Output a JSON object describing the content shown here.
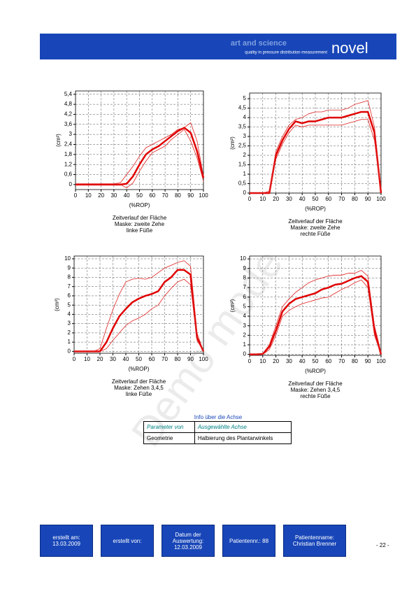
{
  "header": {
    "tagline1": "art and science",
    "tagline2": "quality in pressure distribution measurement",
    "logo": "novel"
  },
  "watermark": "Demo mode",
  "chart_data": [
    {
      "type": "line",
      "xlabel": "(%ROP)",
      "ylabel": "(cm²)",
      "caption": [
        "Zeitverlauf der Fläche",
        "Maske: zweite Zehe",
        "linke Füße"
      ],
      "x": [
        0,
        5,
        10,
        15,
        20,
        25,
        30,
        35,
        40,
        45,
        50,
        55,
        60,
        65,
        70,
        75,
        80,
        85,
        90,
        95,
        100
      ],
      "xlim": [
        0,
        100
      ],
      "xticks": [
        0,
        10,
        20,
        30,
        40,
        50,
        60,
        70,
        80,
        90,
        100
      ],
      "ylim": [
        -0.3,
        5.6
      ],
      "yticks": [
        0,
        {
          "value": 0.6,
          "label": "0,6"
        },
        {
          "value": 1.2,
          "label": "1,2"
        },
        {
          "value": 1.8,
          "label": "1,8"
        },
        {
          "value": 2.4,
          "label": "2,4"
        },
        3,
        {
          "value": 3.6,
          "label": "3,6"
        },
        {
          "value": 4.2,
          "label": "4,2"
        },
        {
          "value": 4.8,
          "label": "4,8"
        },
        {
          "value": 5.4,
          "label": "5,4"
        }
      ],
      "grid": true,
      "series": [
        {
          "color": "#e00000",
          "line_width": 2.5,
          "values": [
            0,
            0,
            0,
            0,
            0,
            0,
            0,
            0,
            0.05,
            0.5,
            1.2,
            1.8,
            2.1,
            2.3,
            2.6,
            2.9,
            3.2,
            3.4,
            3.1,
            2.0,
            0.4
          ]
        },
        {
          "color": "#e02020",
          "line_width": 0.8,
          "values": [
            0.05,
            0.05,
            0.05,
            0.05,
            0.05,
            0.05,
            0.05,
            0.1,
            0.6,
            1.1,
            1.7,
            2.2,
            2.4,
            2.6,
            2.8,
            3.0,
            3.3,
            3.4,
            3.7,
            2.6,
            0.5
          ]
        },
        {
          "color": "#e02020",
          "line_width": 0.8,
          "values": [
            0,
            0,
            0,
            0,
            0,
            0,
            0,
            0,
            -0.2,
            0.1,
            0.8,
            1.4,
            1.9,
            2.1,
            2.3,
            2.7,
            3.0,
            3.3,
            2.6,
            1.6,
            0.2
          ]
        }
      ]
    },
    {
      "type": "line",
      "xlabel": "(%ROP)",
      "ylabel": "(cm²)",
      "caption": [
        "Zeitverlauf der Fläche",
        "Maske: zweite Zehe",
        "rechte Füße"
      ],
      "x": [
        0,
        5,
        10,
        15,
        20,
        25,
        30,
        35,
        40,
        45,
        50,
        55,
        60,
        65,
        70,
        75,
        80,
        85,
        90,
        95,
        100
      ],
      "xlim": [
        0,
        100
      ],
      "xticks": [
        0,
        10,
        20,
        30,
        40,
        50,
        60,
        70,
        80,
        90,
        100
      ],
      "ylim": [
        0,
        5.3
      ],
      "yticks": [
        0,
        {
          "value": 0.5,
          "label": "0,5"
        },
        1,
        {
          "value": 1.5,
          "label": "1,5"
        },
        2,
        {
          "value": 2.5,
          "label": "2,5"
        },
        3,
        {
          "value": 3.5,
          "label": "3,5"
        },
        4,
        {
          "value": 4.5,
          "label": "4,5"
        },
        5
      ],
      "grid": true,
      "series": [
        {
          "color": "#e00000",
          "line_width": 2.5,
          "values": [
            0,
            0,
            0,
            0,
            2.0,
            2.8,
            3.4,
            3.8,
            3.7,
            3.8,
            3.8,
            3.9,
            4.0,
            4.0,
            4.0,
            4.1,
            4.2,
            4.3,
            4.3,
            3.2,
            0
          ]
        },
        {
          "color": "#e02020",
          "line_width": 0.8,
          "values": [
            0,
            0,
            0,
            0.1,
            2.2,
            3.0,
            3.6,
            3.9,
            4.0,
            4.2,
            4.3,
            4.3,
            4.4,
            4.4,
            4.4,
            4.5,
            4.7,
            4.8,
            4.9,
            3.5,
            0.1
          ]
        },
        {
          "color": "#e02020",
          "line_width": 0.8,
          "values": [
            0,
            0,
            0,
            0,
            1.8,
            2.6,
            3.2,
            3.6,
            3.5,
            3.6,
            3.6,
            3.6,
            3.6,
            3.6,
            3.6,
            3.7,
            3.8,
            3.9,
            3.9,
            2.8,
            0
          ]
        }
      ]
    },
    {
      "type": "line",
      "xlabel": "(%ROP)",
      "ylabel": "(cm²)",
      "caption": [
        "Zeitverlauf der Fläche",
        "Maske: Zehen 3,4,5",
        "linke Füße"
      ],
      "x": [
        0,
        5,
        10,
        15,
        20,
        25,
        30,
        35,
        40,
        45,
        50,
        55,
        60,
        65,
        70,
        75,
        80,
        85,
        90,
        95,
        100
      ],
      "xlim": [
        0,
        100
      ],
      "xticks": [
        0,
        10,
        20,
        30,
        40,
        50,
        60,
        70,
        80,
        90,
        100
      ],
      "ylim": [
        -0.2,
        10.3
      ],
      "yticks": [
        0,
        1,
        2,
        3,
        4,
        5,
        6,
        7,
        8,
        9,
        10
      ],
      "grid": true,
      "series": [
        {
          "color": "#e00000",
          "line_width": 2.5,
          "values": [
            0,
            0,
            0,
            0,
            0,
            1.0,
            2.5,
            3.8,
            4.6,
            5.3,
            5.7,
            6.0,
            6.2,
            6.5,
            7.5,
            8.0,
            8.8,
            8.8,
            8.3,
            1.5,
            0
          ]
        },
        {
          "color": "#e02020",
          "line_width": 0.8,
          "values": [
            0,
            0,
            0,
            0,
            0.3,
            2.5,
            4.5,
            6.2,
            7.5,
            7.8,
            7.9,
            7.8,
            8.0,
            8.5,
            9.0,
            9.3,
            9.6,
            9.8,
            9.2,
            2.0,
            0
          ]
        },
        {
          "color": "#e02020",
          "line_width": 0.8,
          "values": [
            0,
            0,
            0,
            0,
            0,
            0.3,
            1.2,
            2.0,
            2.8,
            3.3,
            3.6,
            4.0,
            4.6,
            5.0,
            6.0,
            6.8,
            7.5,
            7.8,
            7.2,
            1.2,
            0
          ]
        }
      ]
    },
    {
      "type": "line",
      "xlabel": "(%ROP)",
      "ylabel": "(cm²)",
      "caption": [
        "Zeitverlauf der Fläche",
        "Maske: Zehen 3,4,5",
        "rechte Füße"
      ],
      "x": [
        0,
        5,
        10,
        15,
        20,
        25,
        30,
        35,
        40,
        45,
        50,
        55,
        60,
        65,
        70,
        75,
        80,
        85,
        90,
        95,
        100
      ],
      "xlim": [
        0,
        100
      ],
      "xticks": [
        0,
        10,
        20,
        30,
        40,
        50,
        60,
        70,
        80,
        90,
        100
      ],
      "ylim": [
        -0.1,
        10.3
      ],
      "yticks": [
        0,
        1,
        2,
        3,
        4,
        5,
        6,
        7,
        8,
        9,
        10
      ],
      "grid": true,
      "series": [
        {
          "color": "#e00000",
          "line_width": 2.5,
          "values": [
            0,
            0,
            0.05,
            0.8,
            2.5,
            4.5,
            5.3,
            5.8,
            6.0,
            6.2,
            6.4,
            6.8,
            7.0,
            7.3,
            7.4,
            7.7,
            8.0,
            8.2,
            7.6,
            2.5,
            0
          ]
        },
        {
          "color": "#e02020",
          "line_width": 0.8,
          "values": [
            0,
            0,
            0.1,
            1.0,
            3.0,
            5.0,
            5.8,
            6.5,
            7.0,
            7.5,
            7.8,
            8.0,
            8.2,
            8.3,
            8.3,
            8.5,
            8.5,
            8.8,
            8.2,
            3.0,
            0.2
          ]
        },
        {
          "color": "#e02020",
          "line_width": 0.8,
          "values": [
            0,
            0,
            0,
            0.5,
            2.0,
            4.0,
            4.6,
            5.0,
            5.3,
            5.5,
            5.7,
            5.9,
            6.0,
            6.4,
            6.8,
            7.1,
            7.5,
            7.8,
            7.0,
            2.0,
            0
          ]
        }
      ]
    }
  ],
  "table": {
    "caption": "Info über die Achse",
    "header": [
      "Parameter von",
      "Ausgewählte Achse"
    ],
    "rows": [
      [
        "Geometrie",
        "Halbierung des Plantarwinkels"
      ]
    ]
  },
  "footer": {
    "created_on": [
      "erstellt am:",
      "13.03.2009"
    ],
    "created_by": "erstellt von:",
    "evaluation_date": [
      "Datum der",
      "Auswertung:",
      "12.03.2009"
    ],
    "patient_no": "Patientennr.: 88",
    "patient_name": [
      "Patientenname:",
      "Christian Brenner"
    ],
    "page": "- 22 -"
  }
}
